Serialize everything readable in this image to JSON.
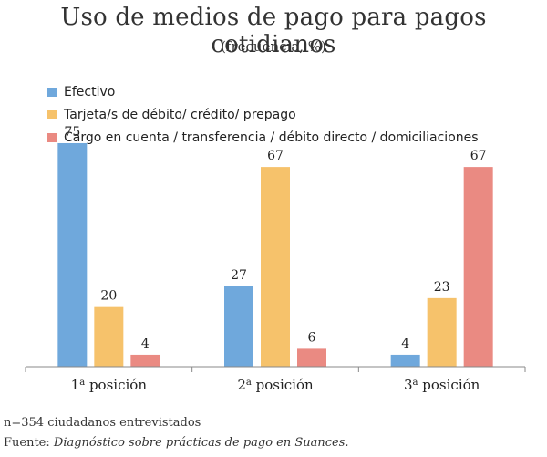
{
  "chart_data": {
    "type": "bar",
    "title": "Uso de medios de pago para pagos cotidianos",
    "subtitle": "(frecuencia, %)",
    "categories": [
      {
        "main": "1",
        "sup": "a",
        "rest": " posición"
      },
      {
        "main": "2",
        "sup": "a",
        "rest": " posición"
      },
      {
        "main": "3",
        "sup": "a",
        "rest": " posición"
      }
    ],
    "series": [
      {
        "name": "Efectivo",
        "color": "#6fa8dc",
        "values": [
          75,
          27,
          4
        ]
      },
      {
        "name": "Tarjeta/s de débito/ crédito/ prepago",
        "color": "#f6c26b",
        "values": [
          20,
          67,
          23
        ]
      },
      {
        "name": "Cargo en cuenta / transferencia / débito directo / domiciliaciones",
        "color": "#ea8a82",
        "values": [
          4,
          6,
          67
        ]
      }
    ],
    "ylim": [
      0,
      80
    ],
    "grid": false,
    "legend": "top-left"
  },
  "footer": {
    "sample": "n=354 ciudadanos entrevistados",
    "source_prefix": "Fuente: ",
    "source_title": "Diagnóstico sobre prácticas de pago en Suances."
  }
}
